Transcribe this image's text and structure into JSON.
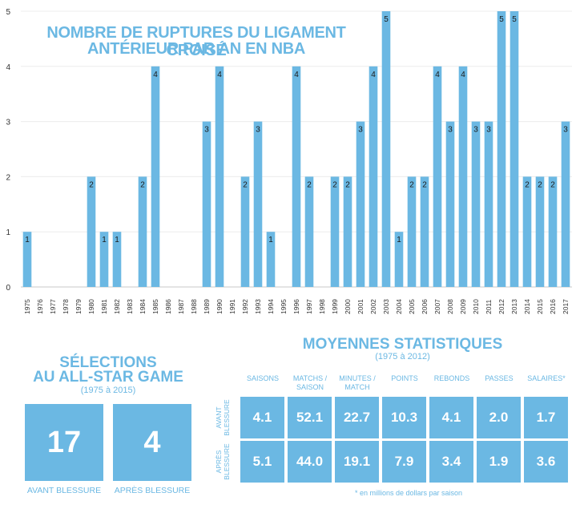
{
  "chart_data": {
    "type": "bar",
    "title": "NOMBRE DE RUPTURES DU LIGAMENT CROISÉ ANTÉRIEUR PAR AN EN NBA",
    "title_lines": [
      "NOMBRE DE RUPTURES DU LIGAMENT CROISÉ",
      "ANTÉRIEUR PAR AN EN NBA"
    ],
    "xlabel": "",
    "ylabel": "",
    "ylim": [
      0,
      5
    ],
    "yticks": [
      "0",
      "1",
      "2",
      "3",
      "4",
      "5"
    ],
    "grid": true,
    "bar_color": "#6bb8e3",
    "categories": [
      "1975",
      "1976",
      "1977",
      "1978",
      "1979",
      "1980",
      "1981",
      "1982",
      "1983",
      "1984",
      "1985",
      "1986",
      "1987",
      "1988",
      "1989",
      "1990",
      "1991",
      "1992",
      "1993",
      "1994",
      "1995",
      "1996",
      "1997",
      "1998",
      "1999",
      "2000",
      "2001",
      "2002",
      "2003",
      "2004",
      "2005",
      "2006",
      "2007",
      "2008",
      "2009",
      "2010",
      "2011",
      "2012",
      "2013",
      "2014",
      "2015",
      "2016",
      "2017"
    ],
    "values": [
      1,
      0,
      0,
      0,
      0,
      2,
      1,
      1,
      0,
      2,
      4,
      0,
      0,
      0,
      3,
      4,
      0,
      2,
      3,
      1,
      0,
      4,
      2,
      0,
      2,
      2,
      3,
      4,
      5,
      1,
      2,
      2,
      4,
      3,
      4,
      3,
      3,
      5,
      5,
      2,
      2,
      2,
      3
    ]
  },
  "allstar": {
    "title_line1": "SÉLECTIONS",
    "title_line2": "AU ALL-STAR GAME",
    "subtitle": "(1975 à 2015)",
    "before_value": "17",
    "after_value": "4",
    "before_label": "AVANT BLESSURE",
    "after_label": "APRÈS BLESSURE"
  },
  "stats": {
    "title": "MOYENNES STATISTIQUES",
    "subtitle": "(1975 à 2012)",
    "columns": [
      [
        "SAISONS"
      ],
      [
        "MATCHS /",
        "SAISON"
      ],
      [
        "MINUTES /",
        "MATCH"
      ],
      [
        "POINTS"
      ],
      [
        "REBONDS"
      ],
      [
        "PASSES"
      ],
      [
        "SALAIRES*"
      ]
    ],
    "rows": [
      {
        "label": [
          "AVANT",
          "BLESSURE"
        ],
        "values": [
          "4.1",
          "52.1",
          "22.7",
          "10.3",
          "4.1",
          "2.0",
          "1.7"
        ]
      },
      {
        "label": [
          "APRÈS",
          "BLESSURE"
        ],
        "values": [
          "5.1",
          "44.0",
          "19.1",
          "7.9",
          "3.4",
          "1.9",
          "3.6"
        ]
      }
    ],
    "footnote": "* en millions de dollars par saison"
  }
}
